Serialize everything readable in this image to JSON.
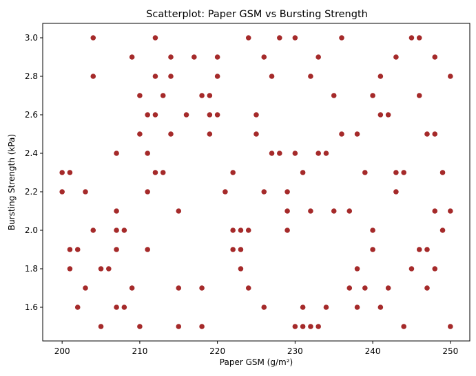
{
  "chart_data": {
    "type": "scatter",
    "title": "Scatterplot: Paper GSM vs Bursting Strength",
    "xlabel": "Paper GSM (g/m²)",
    "ylabel": "Bursting Strength (kPa)",
    "xlim": [
      197.5,
      252.5
    ],
    "ylim": [
      1.425,
      3.075
    ],
    "xticks": [
      200,
      210,
      220,
      230,
      240,
      250
    ],
    "yticks": [
      1.6,
      1.8,
      2.0,
      2.2,
      2.4,
      2.6,
      2.8,
      3.0
    ],
    "xtick_labels": [
      "200",
      "210",
      "220",
      "230",
      "240",
      "250"
    ],
    "ytick_labels": [
      "1.6",
      "1.8",
      "2.0",
      "2.2",
      "2.4",
      "2.6",
      "2.8",
      "3.0"
    ],
    "grid": false,
    "marker_color": "#a52a2a",
    "series": [
      {
        "points": [
          [
            200,
            2.3
          ],
          [
            200,
            2.2
          ],
          [
            201,
            2.3
          ],
          [
            201,
            1.9
          ],
          [
            201,
            1.8
          ],
          [
            202,
            1.9
          ],
          [
            202,
            1.6
          ],
          [
            203,
            2.2
          ],
          [
            203,
            1.7
          ],
          [
            204,
            3.0
          ],
          [
            204,
            2.8
          ],
          [
            204,
            2.0
          ],
          [
            205,
            1.8
          ],
          [
            205,
            1.5
          ],
          [
            206,
            1.8
          ],
          [
            207,
            2.4
          ],
          [
            207,
            2.1
          ],
          [
            207,
            2.0
          ],
          [
            207,
            1.9
          ],
          [
            207,
            1.6
          ],
          [
            208,
            2.0
          ],
          [
            208,
            1.6
          ],
          [
            209,
            2.9
          ],
          [
            209,
            1.7
          ],
          [
            210,
            2.7
          ],
          [
            210,
            2.5
          ],
          [
            210,
            1.5
          ],
          [
            211,
            2.6
          ],
          [
            211,
            2.4
          ],
          [
            211,
            2.2
          ],
          [
            211,
            1.9
          ],
          [
            212,
            3.0
          ],
          [
            212,
            2.8
          ],
          [
            212,
            2.6
          ],
          [
            212,
            2.3
          ],
          [
            213,
            2.7
          ],
          [
            213,
            2.3
          ],
          [
            214,
            2.9
          ],
          [
            214,
            2.8
          ],
          [
            214,
            2.5
          ],
          [
            215,
            2.1
          ],
          [
            215,
            1.7
          ],
          [
            215,
            1.5
          ],
          [
            216,
            2.6
          ],
          [
            217,
            2.9
          ],
          [
            218,
            2.7
          ],
          [
            218,
            1.7
          ],
          [
            218,
            1.5
          ],
          [
            219,
            2.7
          ],
          [
            219,
            2.6
          ],
          [
            219,
            2.5
          ],
          [
            220,
            2.9
          ],
          [
            220,
            2.8
          ],
          [
            220,
            2.6
          ],
          [
            221,
            2.2
          ],
          [
            222,
            2.3
          ],
          [
            222,
            2.0
          ],
          [
            222,
            1.9
          ],
          [
            223,
            2.0
          ],
          [
            223,
            1.9
          ],
          [
            223,
            1.8
          ],
          [
            224,
            3.0
          ],
          [
            224,
            2.0
          ],
          [
            224,
            1.7
          ],
          [
            225,
            2.6
          ],
          [
            225,
            2.5
          ],
          [
            226,
            2.9
          ],
          [
            226,
            2.2
          ],
          [
            226,
            1.6
          ],
          [
            227,
            2.8
          ],
          [
            227,
            2.4
          ],
          [
            228,
            3.0
          ],
          [
            228,
            2.4
          ],
          [
            229,
            2.2
          ],
          [
            229,
            2.1
          ],
          [
            229,
            2.0
          ],
          [
            230,
            3.0
          ],
          [
            230,
            2.4
          ],
          [
            230,
            1.5
          ],
          [
            231,
            2.3
          ],
          [
            231,
            1.6
          ],
          [
            231,
            1.5
          ],
          [
            232,
            2.8
          ],
          [
            232,
            2.1
          ],
          [
            232,
            1.5
          ],
          [
            233,
            2.9
          ],
          [
            233,
            2.4
          ],
          [
            233,
            1.5
          ],
          [
            234,
            2.4
          ],
          [
            234,
            1.6
          ],
          [
            235,
            2.7
          ],
          [
            235,
            2.1
          ],
          [
            236,
            3.0
          ],
          [
            236,
            2.5
          ],
          [
            237,
            2.1
          ],
          [
            237,
            1.7
          ],
          [
            238,
            2.5
          ],
          [
            238,
            1.8
          ],
          [
            238,
            1.6
          ],
          [
            239,
            2.3
          ],
          [
            239,
            1.7
          ],
          [
            240,
            2.7
          ],
          [
            240,
            2.0
          ],
          [
            240,
            1.9
          ],
          [
            241,
            2.8
          ],
          [
            241,
            2.6
          ],
          [
            241,
            1.6
          ],
          [
            242,
            2.6
          ],
          [
            242,
            1.7
          ],
          [
            243,
            2.9
          ],
          [
            243,
            2.3
          ],
          [
            243,
            2.2
          ],
          [
            244,
            2.3
          ],
          [
            244,
            1.5
          ],
          [
            245,
            3.0
          ],
          [
            245,
            1.8
          ],
          [
            246,
            3.0
          ],
          [
            246,
            2.7
          ],
          [
            246,
            1.9
          ],
          [
            247,
            2.5
          ],
          [
            247,
            1.9
          ],
          [
            247,
            1.7
          ],
          [
            248,
            2.9
          ],
          [
            248,
            2.5
          ],
          [
            248,
            2.1
          ],
          [
            248,
            1.8
          ],
          [
            249,
            2.3
          ],
          [
            249,
            2.0
          ],
          [
            250,
            2.8
          ],
          [
            250,
            2.1
          ],
          [
            250,
            1.5
          ]
        ]
      }
    ]
  }
}
